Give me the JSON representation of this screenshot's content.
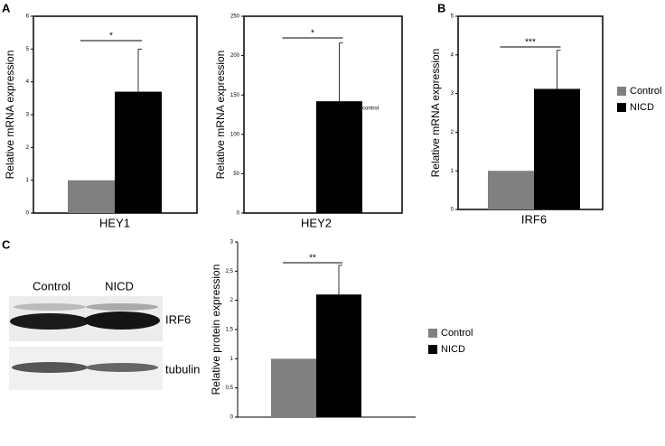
{
  "panels": [
    "A",
    "B",
    "C"
  ],
  "blot": {
    "lanes": [
      "Control",
      "NICD"
    ],
    "bands": [
      "IRF6",
      "tubulin"
    ]
  },
  "chart_data": [
    {
      "type": "bar",
      "y_label": "Relative mRNA expression",
      "categories": [
        "HEY1"
      ],
      "series": [
        {
          "name": "Control",
          "color": "#808080",
          "values": [
            1
          ]
        },
        {
          "name": "NICD",
          "color": "#000000",
          "values": [
            3.7
          ],
          "errors": [
            1.3
          ]
        }
      ],
      "ylim": [
        0,
        6
      ],
      "yticks": [
        0,
        1,
        2,
        3,
        4,
        5,
        6
      ],
      "significance": "*",
      "frame": true,
      "legend": false
    },
    {
      "type": "bar",
      "y_label": "Relative mRNA expression",
      "categories": [
        "HEY2"
      ],
      "series": [
        {
          "name": "Control",
          "color": "#808080",
          "values": [
            0
          ]
        },
        {
          "name": "NICD",
          "color": "#000000",
          "values": [
            142
          ],
          "errors": [
            74
          ]
        }
      ],
      "ylim": [
        0,
        250
      ],
      "yticks": [
        0,
        50,
        100,
        150,
        200,
        250
      ],
      "significance": "*",
      "annotation": "control",
      "frame": true,
      "legend": false
    },
    {
      "type": "bar",
      "y_label": "Relative mRNA expression",
      "categories": [
        "IRF6"
      ],
      "series": [
        {
          "name": "Control",
          "color": "#808080",
          "values": [
            1
          ]
        },
        {
          "name": "NICD",
          "color": "#000000",
          "values": [
            3.12
          ],
          "errors": [
            1.0
          ]
        }
      ],
      "ylim": [
        0,
        5
      ],
      "yticks": [
        0,
        1,
        2,
        3,
        4,
        5
      ],
      "significance": "***",
      "frame": true,
      "legend": "right"
    },
    {
      "type": "bar",
      "y_label": "Relative protein expression",
      "categories": [
        null
      ],
      "series": [
        {
          "name": "Control",
          "color": "#808080",
          "values": [
            1
          ]
        },
        {
          "name": "NICD",
          "color": "#000000",
          "values": [
            2.1
          ],
          "errors": [
            0.5
          ]
        }
      ],
      "ylim": [
        0,
        3
      ],
      "yticks": [
        0,
        {
          "value": 0.5,
          "label": "0,5"
        },
        1,
        {
          "value": 1.5,
          "label": "1,5"
        },
        2,
        {
          "value": 2.5,
          "label": "2,5"
        },
        3
      ],
      "significance": "**",
      "frame": false,
      "legend": "right"
    }
  ]
}
